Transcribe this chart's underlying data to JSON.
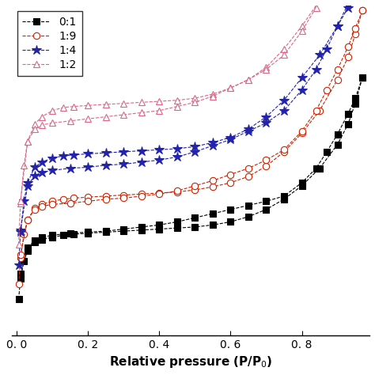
{
  "xlabel": "Relative pressure (P/P$_0$)",
  "xlim": [
    -0.015,
    0.99
  ],
  "ylim": [
    0,
    320
  ],
  "series": [
    {
      "label": "0:1",
      "color": "#000000",
      "marker": "s",
      "marker_size": 6,
      "markerfacecolor": "#000000",
      "linestyle": "--",
      "linewidth": 0.8,
      "ads_x": [
        0.005,
        0.01,
        0.02,
        0.03,
        0.05,
        0.07,
        0.1,
        0.13,
        0.16,
        0.2,
        0.25,
        0.3,
        0.35,
        0.4,
        0.45,
        0.5,
        0.55,
        0.6,
        0.65,
        0.7,
        0.75,
        0.8,
        0.85,
        0.9,
        0.93,
        0.95,
        0.97
      ],
      "ads_y": [
        35,
        55,
        72,
        82,
        90,
        93,
        95,
        97,
        98,
        99,
        100,
        101,
        102,
        103,
        104,
        105,
        107,
        110,
        115,
        122,
        132,
        145,
        162,
        185,
        205,
        225,
        250
      ],
      "des_x": [
        0.97,
        0.95,
        0.93,
        0.9,
        0.87,
        0.84,
        0.8,
        0.75,
        0.7,
        0.65,
        0.6,
        0.55,
        0.5,
        0.45,
        0.4,
        0.35,
        0.3,
        0.25,
        0.2,
        0.15,
        0.1,
        0.07,
        0.05,
        0.03,
        0.01
      ],
      "des_y": [
        250,
        230,
        215,
        195,
        178,
        162,
        148,
        135,
        130,
        126,
        122,
        118,
        114,
        110,
        107,
        105,
        103,
        101,
        100,
        99,
        97,
        95,
        92,
        85,
        60
      ]
    },
    {
      "label": "1:9",
      "color": "#cc2200",
      "marker": "o",
      "marker_size": 6,
      "markerfacecolor": "white",
      "linestyle": "--",
      "linewidth": 0.8,
      "ads_x": [
        0.005,
        0.01,
        0.02,
        0.03,
        0.05,
        0.07,
        0.1,
        0.13,
        0.16,
        0.2,
        0.25,
        0.3,
        0.35,
        0.4,
        0.45,
        0.5,
        0.55,
        0.6,
        0.65,
        0.7,
        0.75,
        0.8,
        0.85,
        0.9,
        0.93,
        0.95,
        0.97
      ],
      "ads_y": [
        50,
        75,
        98,
        112,
        123,
        127,
        130,
        132,
        133,
        134,
        135,
        136,
        137,
        138,
        139,
        141,
        144,
        148,
        154,
        164,
        178,
        196,
        218,
        248,
        270,
        292,
        315
      ],
      "des_x": [
        0.97,
        0.95,
        0.93,
        0.9,
        0.87,
        0.84,
        0.8,
        0.75,
        0.7,
        0.65,
        0.6,
        0.55,
        0.5,
        0.45,
        0.4,
        0.35,
        0.3,
        0.25,
        0.2,
        0.15,
        0.1,
        0.07,
        0.05,
        0.03,
        0.01
      ],
      "des_y": [
        315,
        298,
        280,
        258,
        238,
        218,
        198,
        180,
        170,
        162,
        156,
        150,
        145,
        140,
        137,
        135,
        133,
        132,
        130,
        128,
        127,
        125,
        122,
        112,
        78
      ]
    },
    {
      "label": "1:4",
      "color": "#2222aa",
      "marker": "*",
      "marker_size": 9,
      "markerfacecolor": "#2222aa",
      "linestyle": "--",
      "linewidth": 0.8,
      "ads_x": [
        0.005,
        0.01,
        0.02,
        0.03,
        0.05,
        0.07,
        0.1,
        0.13,
        0.16,
        0.2,
        0.25,
        0.3,
        0.35,
        0.4,
        0.45,
        0.5,
        0.55,
        0.6,
        0.65,
        0.7,
        0.75,
        0.8,
        0.85,
        0.9,
        0.93,
        0.95,
        0.97
      ],
      "ads_y": [
        68,
        100,
        130,
        148,
        163,
        168,
        172,
        174,
        175,
        176,
        177,
        178,
        179,
        180,
        181,
        183,
        187,
        192,
        200,
        212,
        228,
        250,
        272,
        300,
        318,
        338,
        358
      ],
      "des_x": [
        0.97,
        0.95,
        0.93,
        0.9,
        0.87,
        0.84,
        0.8,
        0.75,
        0.7,
        0.65,
        0.6,
        0.55,
        0.5,
        0.45,
        0.4,
        0.35,
        0.3,
        0.25,
        0.2,
        0.15,
        0.1,
        0.07,
        0.05,
        0.03,
        0.01
      ],
      "des_y": [
        358,
        340,
        322,
        300,
        278,
        258,
        238,
        218,
        206,
        198,
        190,
        184,
        178,
        173,
        170,
        168,
        166,
        165,
        163,
        162,
        160,
        158,
        155,
        145,
        102
      ]
    },
    {
      "label": "1:2",
      "color": "#dd6688",
      "marker": "^",
      "marker_size": 6,
      "markerfacecolor": "white",
      "linestyle": "--",
      "linewidth": 0.8,
      "ads_x": [
        0.005,
        0.01,
        0.02,
        0.03,
        0.05,
        0.07,
        0.1,
        0.13,
        0.16,
        0.2,
        0.25,
        0.3,
        0.35,
        0.4,
        0.45,
        0.5,
        0.55,
        0.6,
        0.65,
        0.7,
        0.75,
        0.8,
        0.85,
        0.9,
        0.93,
        0.95,
        0.97
      ],
      "ads_y": [
        88,
        128,
        165,
        188,
        205,
        212,
        218,
        221,
        222,
        223,
        224,
        225,
        226,
        227,
        228,
        230,
        234,
        240,
        248,
        260,
        278,
        300,
        325,
        355,
        378,
        400,
        420
      ],
      "des_x": [
        0.97,
        0.95,
        0.93,
        0.9,
        0.87,
        0.84,
        0.8,
        0.75,
        0.7,
        0.65,
        0.6,
        0.55,
        0.5,
        0.45,
        0.4,
        0.35,
        0.3,
        0.25,
        0.2,
        0.15,
        0.1,
        0.07,
        0.05,
        0.03,
        0.01
      ],
      "des_y": [
        420,
        402,
        385,
        362,
        340,
        318,
        295,
        272,
        258,
        248,
        240,
        232,
        226,
        222,
        218,
        216,
        214,
        212,
        210,
        208,
        206,
        204,
        200,
        188,
        130
      ]
    }
  ],
  "legend_loc": "upper left",
  "background_color": "#ffffff",
  "xticks": [
    0.0,
    0.2,
    0.4,
    0.6,
    0.8
  ],
  "xtick_labels": [
    "0. 0",
    "0. 2",
    "0. 4",
    "0. 6",
    "0. 8"
  ]
}
